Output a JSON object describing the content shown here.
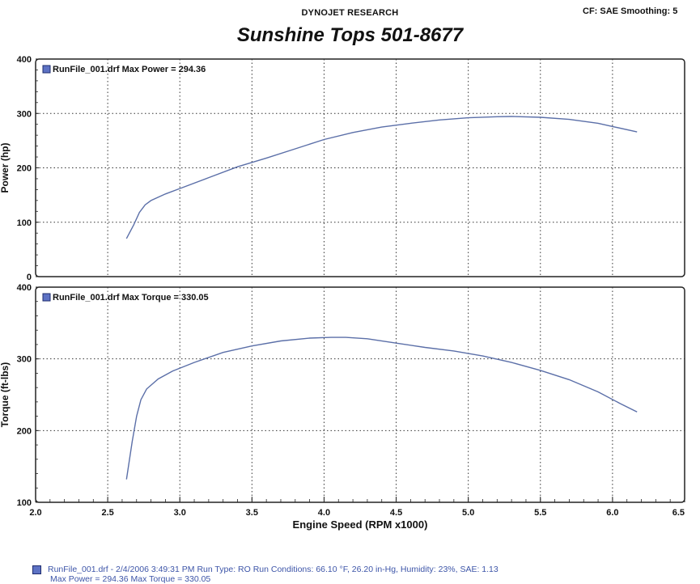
{
  "header": {
    "company": "DYNOJET RESEARCH",
    "settings": "CF: SAE  Smoothing: 5"
  },
  "chart_data": [
    {
      "type": "line",
      "title": "Sunshine Tops  501-8677",
      "xlabel": "",
      "ylabel": "Power (hp)",
      "xlim": [
        2.0,
        6.5
      ],
      "ylim": [
        0,
        400
      ],
      "yticks": [
        "0",
        "100",
        "200",
        "300",
        "400"
      ],
      "grid": true,
      "legend_placement": "top-left",
      "series": [
        {
          "name": "RunFile_001.drf Max Power = 294.36",
          "color": "#5b6fa8",
          "x": [
            2.63,
            2.68,
            2.72,
            2.76,
            2.8,
            2.9,
            3.0,
            3.2,
            3.4,
            3.6,
            3.8,
            4.0,
            4.2,
            4.4,
            4.6,
            4.8,
            5.0,
            5.2,
            5.3,
            5.5,
            5.7,
            5.9,
            6.0,
            6.17
          ],
          "y": [
            70,
            95,
            118,
            132,
            140,
            152,
            162,
            182,
            202,
            218,
            235,
            252,
            265,
            275,
            282,
            288,
            292,
            294,
            294.4,
            293,
            289,
            282,
            276,
            266
          ]
        }
      ]
    },
    {
      "type": "line",
      "xlabel": "Engine Speed (RPM x1000)",
      "ylabel": "Torque (ft-lbs)",
      "xlim": [
        2.0,
        6.5
      ],
      "ylim": [
        100,
        400
      ],
      "yticks": [
        "100",
        "200",
        "300",
        "400"
      ],
      "xticks": [
        "2.0",
        "2.5",
        "3.0",
        "3.5",
        "4.0",
        "4.5",
        "5.0",
        "5.5",
        "6.0",
        "6.5"
      ],
      "grid": true,
      "legend_placement": "top-left",
      "series": [
        {
          "name": "RunFile_001.drf Max Torque = 330.05",
          "color": "#5b6fa8",
          "x": [
            2.63,
            2.67,
            2.7,
            2.73,
            2.77,
            2.85,
            2.95,
            3.1,
            3.3,
            3.5,
            3.7,
            3.9,
            4.05,
            4.15,
            4.3,
            4.5,
            4.7,
            4.9,
            5.1,
            5.3,
            5.5,
            5.7,
            5.9,
            6.05,
            6.17
          ],
          "y": [
            132,
            185,
            220,
            243,
            258,
            272,
            283,
            295,
            309,
            318,
            325,
            329,
            330,
            330,
            328,
            322,
            316,
            311,
            304,
            295,
            284,
            271,
            254,
            238,
            226
          ]
        }
      ]
    }
  ],
  "footer": {
    "run_info": "RunFile_001.drf - 2/4/2006 3:49:31 PM  Run Type: RO  Run Conditions: 66.10 °F, 26.20 in-Hg,  Humidity:  23%, SAE: 1.13",
    "max_values": "Max Power = 294.36  Max Torque = 330.05"
  }
}
